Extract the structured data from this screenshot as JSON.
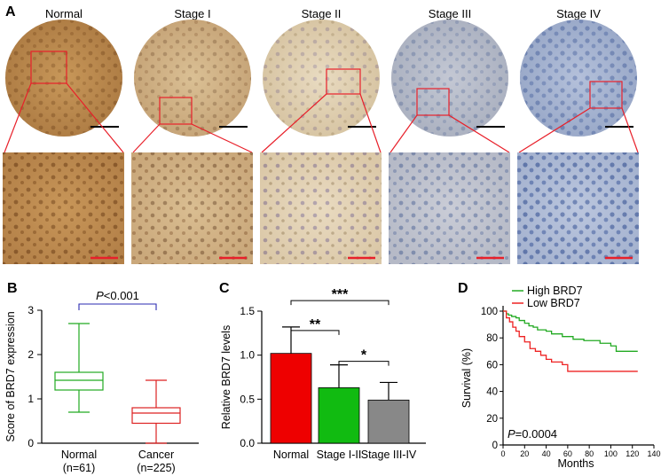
{
  "panel_a": {
    "label": "A",
    "stages": [
      "Normal",
      "Stage I",
      "Stage II",
      "Stage III",
      "Stage IV"
    ]
  },
  "chart_data": [
    {
      "panel": "B",
      "type": "box",
      "ylabel": "Score of BRD7 expression",
      "ylim": [
        0,
        3
      ],
      "yticks": [
        0,
        1,
        2,
        3
      ],
      "categories": [
        "Normal",
        "Cancer"
      ],
      "category_n": [
        "(n=61)",
        "(n=225)"
      ],
      "boxes": [
        {
          "name": "Normal",
          "min": 0.7,
          "q1": 1.2,
          "median": 1.42,
          "q3": 1.6,
          "max": 2.7,
          "color": "#22aa22"
        },
        {
          "name": "Cancer",
          "min": 0.0,
          "q1": 0.45,
          "median": 0.68,
          "q3": 0.8,
          "max": 1.42,
          "color": "#dd2222"
        }
      ],
      "annotation": {
        "p_symbol": "P",
        "p_rest": "<0.001"
      }
    },
    {
      "panel": "C",
      "type": "bar",
      "ylabel": "Relative BRD7 levels",
      "ylim": [
        0,
        1.5
      ],
      "yticks": [
        0.0,
        0.5,
        1.0,
        1.5
      ],
      "ytick_labels": [
        "0.0",
        "0.5",
        "1.0",
        "1.5"
      ],
      "categories": [
        "Normal",
        "Stage I-II",
        "Stage III-IV"
      ],
      "values": [
        1.02,
        0.63,
        0.49
      ],
      "errors": [
        0.3,
        0.26,
        0.2
      ],
      "colors": [
        "#ee0000",
        "#11bb11",
        "#888888"
      ],
      "significance": [
        {
          "from": 0,
          "to": 2,
          "label": "***",
          "y": 1.62
        },
        {
          "from": 0,
          "to": 1,
          "label": "**",
          "y": 1.28
        },
        {
          "from": 1,
          "to": 2,
          "label": "*",
          "y": 0.93
        }
      ]
    },
    {
      "panel": "D",
      "type": "line",
      "ylabel": "Survival (%)",
      "xlabel": "Months",
      "xlim": [
        0,
        140
      ],
      "ylim": [
        0,
        100
      ],
      "xticks": [
        0,
        20,
        40,
        60,
        80,
        100,
        120,
        140
      ],
      "yticks": [
        0,
        20,
        40,
        60,
        80,
        100
      ],
      "series": [
        {
          "name": "High BRD7",
          "color": "#22aa22",
          "x": [
            0,
            3,
            5,
            8,
            12,
            15,
            20,
            24,
            28,
            32,
            40,
            45,
            55,
            65,
            75,
            90,
            100,
            105,
            125
          ],
          "y": [
            100,
            98,
            97,
            96,
            95,
            93,
            91,
            89,
            88,
            86,
            85,
            83,
            81,
            79,
            78,
            76,
            74,
            70,
            70
          ]
        },
        {
          "name": "Low  BRD7",
          "color": "#ee2222",
          "x": [
            0,
            3,
            6,
            9,
            12,
            15,
            20,
            25,
            30,
            35,
            40,
            45,
            50,
            55,
            60,
            125
          ],
          "y": [
            100,
            95,
            92,
            88,
            85,
            81,
            77,
            72,
            70,
            67,
            64,
            62,
            62,
            60,
            55,
            55
          ]
        }
      ],
      "legend": "top-left",
      "annotation": {
        "p_symbol": "P",
        "p_rest": "=0.0004"
      }
    }
  ]
}
